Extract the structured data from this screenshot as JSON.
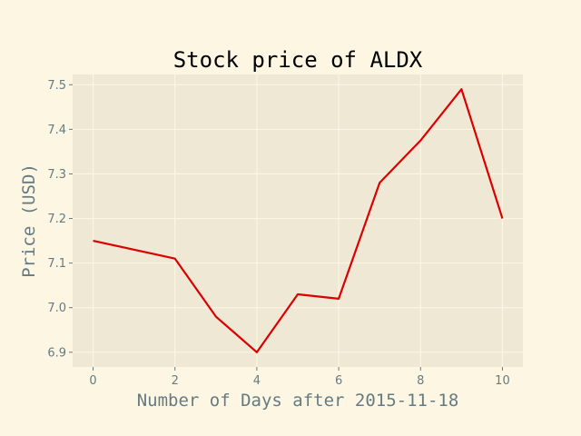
{
  "chart_data": {
    "type": "line",
    "title": "Stock price of ALDX",
    "xlabel": "Number of Days after 2015-11-18",
    "ylabel": "Price (USD)",
    "xlim": [
      -0.5,
      10.5
    ],
    "ylim": [
      6.867,
      7.523
    ],
    "xticks": [
      0,
      2,
      4,
      6,
      8,
      10
    ],
    "yticks": [
      6.9,
      7.0,
      7.1,
      7.2,
      7.3,
      7.4,
      7.5
    ],
    "grid": true,
    "colors": {
      "background": "#fdf6e3",
      "plot_background": "#eee8d5",
      "line": "#dc0000",
      "text": "#657b83"
    },
    "series": [
      {
        "x": [
          0,
          2,
          3,
          4,
          5,
          6,
          7,
          8,
          9,
          10
        ],
        "y": [
          7.15,
          7.11,
          6.98,
          6.9,
          7.03,
          7.02,
          7.28,
          7.375,
          7.49,
          7.2
        ]
      }
    ]
  }
}
